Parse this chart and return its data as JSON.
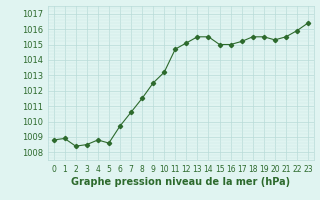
{
  "hours": [
    0,
    1,
    2,
    3,
    4,
    5,
    6,
    7,
    8,
    9,
    10,
    11,
    12,
    13,
    14,
    15,
    16,
    17,
    18,
    19,
    20,
    21,
    22,
    23
  ],
  "pressure": [
    1008.8,
    1008.9,
    1008.4,
    1008.5,
    1008.8,
    1008.6,
    1009.7,
    1010.6,
    1011.5,
    1012.5,
    1013.2,
    1014.7,
    1015.1,
    1015.5,
    1015.5,
    1015.0,
    1015.0,
    1015.2,
    1015.5,
    1015.5,
    1015.3,
    1015.5,
    1015.9,
    1016.4
  ],
  "line_color": "#2d6a2d",
  "marker": "D",
  "marker_size": 2.2,
  "line_width": 0.8,
  "bg_plot": "#e0f4f1",
  "bg_fig": "#e0f4f1",
  "grid_major_color": "#b8dbd8",
  "grid_minor_color": "#cceae6",
  "xlabel": "Graphe pression niveau de la mer (hPa)",
  "xlabel_fontsize": 7,
  "ytick_labels": [
    1008,
    1009,
    1010,
    1011,
    1012,
    1013,
    1014,
    1015,
    1016,
    1017
  ],
  "ylim": [
    1007.5,
    1017.5
  ],
  "xlim": [
    -0.5,
    23.5
  ],
  "tick_color": "#2d6a2d",
  "tick_fontsize": 6.0,
  "xtick_fontsize": 5.5
}
